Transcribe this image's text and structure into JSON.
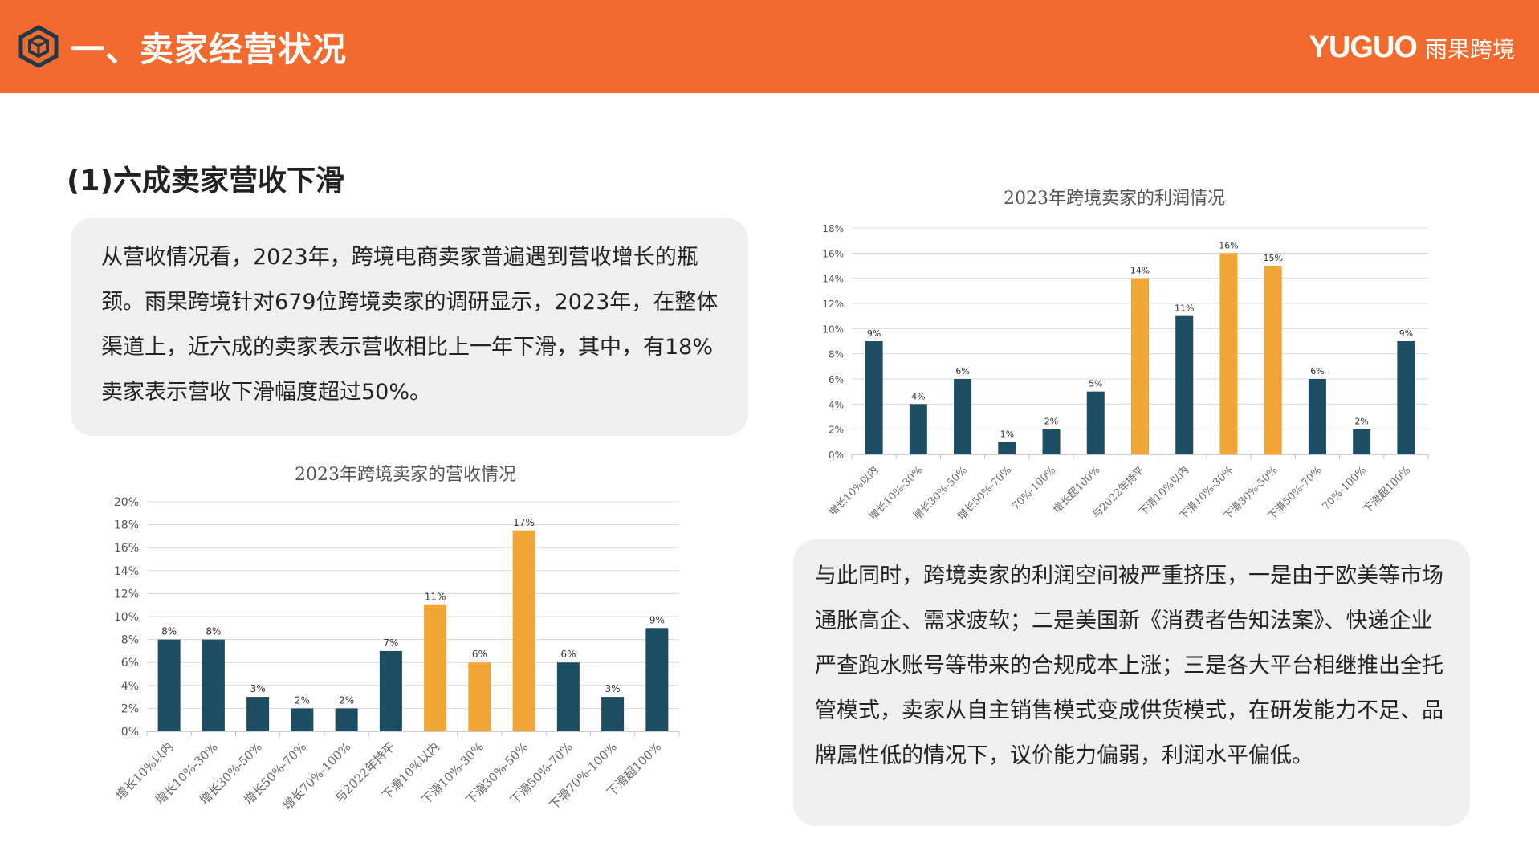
{
  "header": {
    "title": "一、卖家经营状况",
    "logo_en": "YUGUO",
    "logo_cn": "雨果跨境",
    "icon": "hexagon-cube-icon",
    "color": "#f26a2e"
  },
  "section": {
    "subtitle": "(1)六成卖家营收下滑"
  },
  "text1": "从营收情况看，2023年，跨境电商卖家普遍遇到营收增长的瓶颈。雨果跨境针对679位跨境卖家的调研显示，2023年，在整体渠道上，近六成的卖家表示营收相比上一年下滑，其中，有18%卖家表示营收下滑幅度超过50%。",
  "text2": "与此同时，跨境卖家的利润空间被严重挤压，一是由于欧美等市场通胀高企、需求疲软；二是美国新《消费者告知法案》、快递企业严查跑水账号等带来的合规成本上涨；三是各大平台相继推出全托管模式，卖家从自主销售模式变成供货模式，在研发能力不足、品牌属性低的情况下，议价能力偏弱，利润水平偏低。",
  "chart_data": [
    {
      "type": "bar",
      "title": "2023年跨境卖家的营收情况",
      "ylim": [
        0,
        20
      ],
      "yticks": [
        "0%",
        "2%",
        "4%",
        "6%",
        "8%",
        "10%",
        "12%",
        "14%",
        "16%",
        "18%",
        "20%"
      ],
      "grid": true,
      "categories": [
        "增长10%以内",
        "增长10%-30%",
        "增长30%-50%",
        "增长50%-70%",
        "增长70%-100%",
        "与2022年持平",
        "下滑10%以内",
        "下滑10%-30%",
        "下滑30%-50%",
        "下滑50%-70%",
        "下滑70%-100%",
        "下滑超100%"
      ],
      "values": [
        8,
        8,
        3,
        2,
        2,
        7,
        11,
        6,
        17,
        6,
        3,
        9
      ],
      "labels": [
        "8%",
        "8%",
        "3%",
        "2%",
        "2%",
        "7%",
        "11%",
        "6%",
        "17%",
        "6%",
        "3%",
        "9%"
      ],
      "highlight": [
        6,
        7,
        8
      ],
      "colors": {
        "normal": "#1d4d62",
        "highlight": "#f0a535"
      }
    },
    {
      "type": "bar",
      "title": "2023年跨境卖家的利润情况",
      "ylim": [
        0,
        18
      ],
      "yticks": [
        "0%",
        "2%",
        "4%",
        "6%",
        "8%",
        "10%",
        "12%",
        "14%",
        "16%",
        "18%"
      ],
      "grid": true,
      "categories": [
        "增长10%以内",
        "增长10%-30%",
        "增长30%-50%",
        "增长50%-70%",
        "70%-100%",
        "增长超100%",
        "与2022年持平",
        "下滑10%以内",
        "下滑10%-30%",
        "下滑30%-50%",
        "下滑50%-70%",
        "70%-100%",
        "下滑超100%"
      ],
      "values": [
        9,
        4,
        6,
        1,
        2,
        5,
        14,
        11,
        16,
        15,
        6,
        2,
        9
      ],
      "labels": [
        "9%",
        "4%",
        "6%",
        "1%",
        "2%",
        "5%",
        "14%",
        "11%",
        "16%",
        "15%",
        "6%",
        "2%",
        "9%"
      ],
      "highlight": [
        6,
        8,
        9
      ],
      "colors": {
        "normal": "#1d4d62",
        "highlight": "#f0a535"
      }
    }
  ]
}
